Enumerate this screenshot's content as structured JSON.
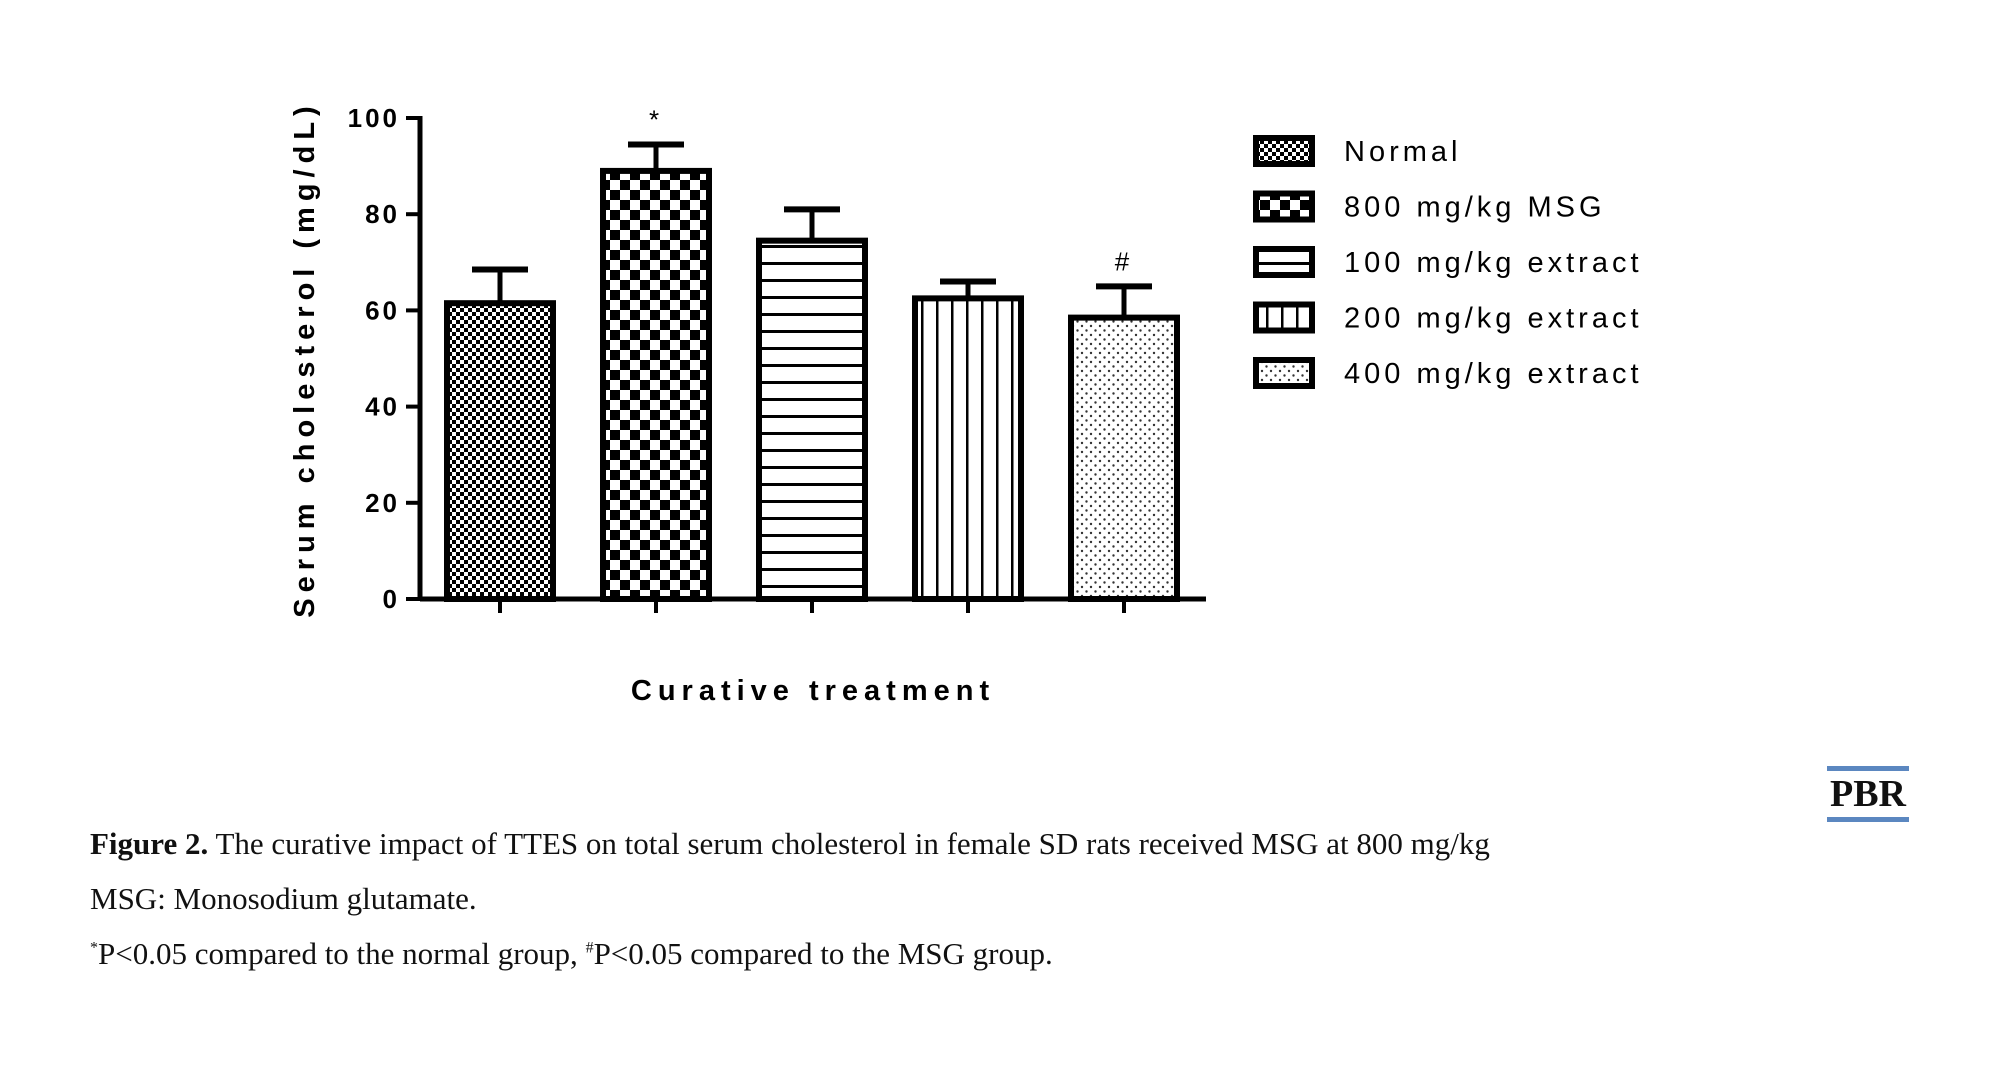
{
  "chart_data": {
    "type": "bar",
    "title": "",
    "xlabel": "Curative treatment",
    "ylabel": "Serum cholesterol (mg/dL)",
    "ylim": [
      0,
      100
    ],
    "yticks": [
      "0",
      "20",
      "40",
      "60",
      "80",
      "100"
    ],
    "categories": [
      "Normal",
      "800 mg/kg MSG",
      "100 mg/kg extract",
      "200 mg/kg extract",
      "400 mg/kg extract"
    ],
    "values": [
      61.5,
      89,
      74.5,
      62.5,
      58.5
    ],
    "error_upper": [
      7,
      5.5,
      6.5,
      3.5,
      6.5
    ],
    "annotations": [
      "",
      "*",
      "",
      "",
      "#"
    ],
    "patterns": [
      "fine-checker",
      "coarse-checker",
      "horizontal-lines",
      "vertical-lines",
      "dots"
    ],
    "legend_position": "right",
    "grid": false
  },
  "caption": {
    "figure_label": "Figure 2.",
    "text": " The curative impact of TTES on total serum cholesterol in female SD rats received MSG at 800 mg/kg",
    "abbrev": "MSG: Monosodium glutamate.",
    "note_star_mark": "*",
    "note_star": "P<0.05 compared to the normal group, ",
    "note_hash_mark": "#",
    "note_hash": "P<0.05 compared to the MSG group."
  },
  "logo": "PBR"
}
